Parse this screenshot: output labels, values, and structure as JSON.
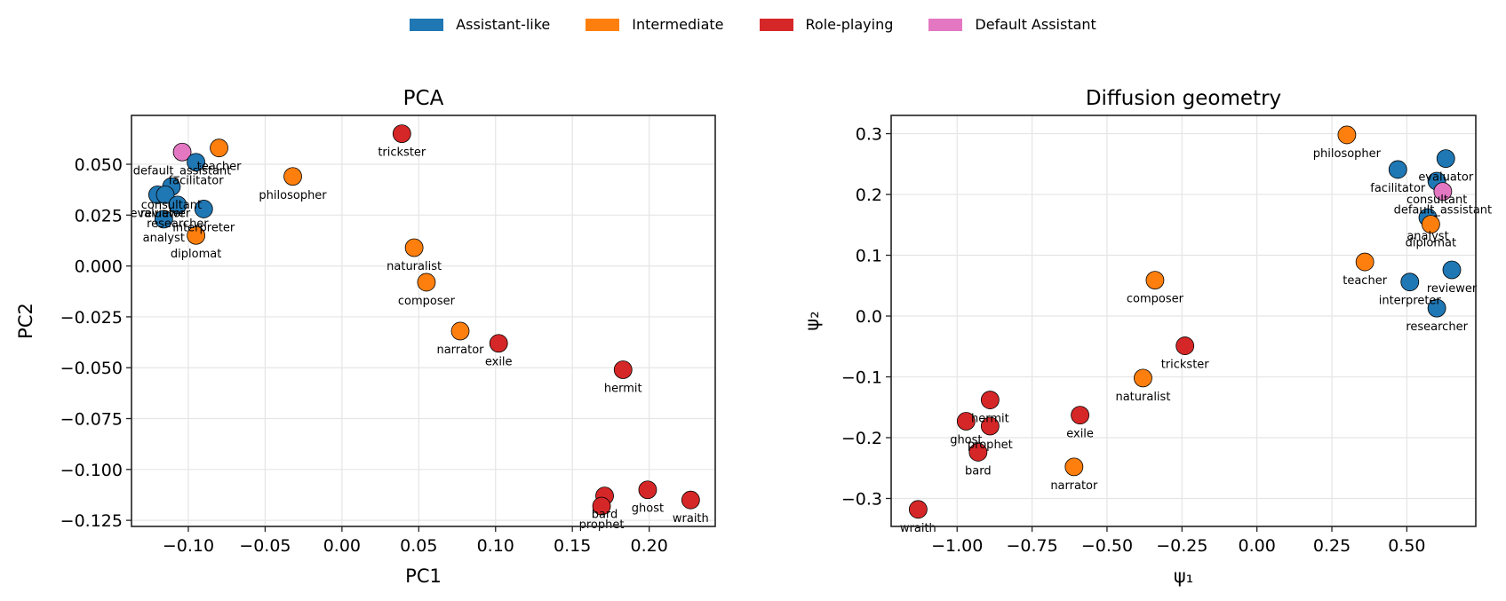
{
  "legend": {
    "placement": "top-center",
    "entries": [
      {
        "label": "Assistant-like",
        "color": "#1f77b4"
      },
      {
        "label": "Intermediate",
        "color": "#ff7f0e"
      },
      {
        "label": "Role-playing",
        "color": "#d62728"
      },
      {
        "label": "Default Assistant",
        "color": "#e377c2"
      }
    ]
  },
  "chart_data": [
    {
      "type": "scatter",
      "title": "PCA",
      "xlabel": "PC1",
      "ylabel": "PC2",
      "xlim": [
        -0.137,
        0.243
      ],
      "ylim": [
        -0.128,
        0.074
      ],
      "xticks": [
        -0.1,
        -0.05,
        0.0,
        0.05,
        0.1,
        0.15,
        0.2
      ],
      "xtick_labels": [
        "−0.10",
        "−0.05",
        "0.00",
        "0.05",
        "0.10",
        "0.15",
        "0.20"
      ],
      "yticks": [
        0.05,
        0.025,
        0.0,
        -0.025,
        -0.05,
        -0.075,
        -0.1,
        -0.125
      ],
      "ytick_labels": [
        "0.050",
        "0.025",
        "0.000",
        "−0.025",
        "−0.050",
        "−0.075",
        "−0.100",
        "−0.125"
      ],
      "grid": true,
      "points": [
        {
          "label": "trickster",
          "group": "Role-playing",
          "x": 0.039,
          "y": 0.065
        },
        {
          "label": "teacher",
          "group": "Intermediate",
          "x": -0.08,
          "y": 0.058
        },
        {
          "label": "default_assistant",
          "group": "Default Assistant",
          "x": -0.104,
          "y": 0.056
        },
        {
          "label": "facilitator",
          "group": "Assistant-like",
          "x": -0.095,
          "y": 0.051
        },
        {
          "label": "philosopher",
          "group": "Intermediate",
          "x": -0.032,
          "y": 0.044
        },
        {
          "label": "consultant",
          "group": "Assistant-like",
          "x": -0.111,
          "y": 0.039
        },
        {
          "label": "evaluator",
          "group": "Assistant-like",
          "x": -0.12,
          "y": 0.035
        },
        {
          "label": "reviewer",
          "group": "Assistant-like",
          "x": -0.115,
          "y": 0.035
        },
        {
          "label": "researcher",
          "group": "Assistant-like",
          "x": -0.107,
          "y": 0.03
        },
        {
          "label": "interpreter",
          "group": "Assistant-like",
          "x": -0.09,
          "y": 0.028
        },
        {
          "label": "analyst",
          "group": "Assistant-like",
          "x": -0.116,
          "y": 0.023
        },
        {
          "label": "diplomat",
          "group": "Intermediate",
          "x": -0.095,
          "y": 0.015
        },
        {
          "label": "naturalist",
          "group": "Intermediate",
          "x": 0.047,
          "y": 0.009
        },
        {
          "label": "composer",
          "group": "Intermediate",
          "x": 0.055,
          "y": -0.008
        },
        {
          "label": "narrator",
          "group": "Intermediate",
          "x": 0.077,
          "y": -0.032
        },
        {
          "label": "exile",
          "group": "Role-playing",
          "x": 0.102,
          "y": -0.038
        },
        {
          "label": "hermit",
          "group": "Role-playing",
          "x": 0.183,
          "y": -0.051
        },
        {
          "label": "ghost",
          "group": "Role-playing",
          "x": 0.199,
          "y": -0.11
        },
        {
          "label": "bard",
          "group": "Role-playing",
          "x": 0.171,
          "y": -0.113
        },
        {
          "label": "prophet",
          "group": "Role-playing",
          "x": 0.169,
          "y": -0.118
        },
        {
          "label": "wraith",
          "group": "Role-playing",
          "x": 0.227,
          "y": -0.115
        }
      ]
    },
    {
      "type": "scatter",
      "title": "Diffusion geometry",
      "xlabel": "ψ₁",
      "ylabel": "ψ₂",
      "xlim": [
        -1.22,
        0.73
      ],
      "ylim": [
        -0.346,
        0.33
      ],
      "xticks": [
        -1.0,
        -0.75,
        -0.5,
        -0.25,
        0.0,
        0.25,
        0.5
      ],
      "xtick_labels": [
        "−1.00",
        "−0.75",
        "−0.50",
        "−0.25",
        "0.00",
        "0.25",
        "0.50"
      ],
      "yticks": [
        0.3,
        0.2,
        0.1,
        0.0,
        -0.1,
        -0.2,
        -0.3
      ],
      "ytick_labels": [
        "0.3",
        "0.2",
        "0.1",
        "0.0",
        "−0.1",
        "−0.2",
        "−0.3"
      ],
      "grid": true,
      "points": [
        {
          "label": "philosopher",
          "group": "Intermediate",
          "x": 0.3,
          "y": 0.298
        },
        {
          "label": "evaluator",
          "group": "Assistant-like",
          "x": 0.63,
          "y": 0.259
        },
        {
          "label": "facilitator",
          "group": "Assistant-like",
          "x": 0.47,
          "y": 0.241
        },
        {
          "label": "consultant",
          "group": "Assistant-like",
          "x": 0.6,
          "y": 0.222
        },
        {
          "label": "default_assistant",
          "group": "Default Assistant",
          "x": 0.62,
          "y": 0.205
        },
        {
          "label": "analyst",
          "group": "Assistant-like",
          "x": 0.57,
          "y": 0.162
        },
        {
          "label": "diplomat",
          "group": "Intermediate",
          "x": 0.58,
          "y": 0.151
        },
        {
          "label": "teacher",
          "group": "Intermediate",
          "x": 0.36,
          "y": 0.089
        },
        {
          "label": "reviewer",
          "group": "Assistant-like",
          "x": 0.65,
          "y": 0.076
        },
        {
          "label": "interpreter",
          "group": "Assistant-like",
          "x": 0.51,
          "y": 0.056
        },
        {
          "label": "researcher",
          "group": "Assistant-like",
          "x": 0.6,
          "y": 0.013
        },
        {
          "label": "composer",
          "group": "Intermediate",
          "x": -0.34,
          "y": 0.059
        },
        {
          "label": "trickster",
          "group": "Role-playing",
          "x": -0.24,
          "y": -0.049
        },
        {
          "label": "naturalist",
          "group": "Intermediate",
          "x": -0.38,
          "y": -0.102
        },
        {
          "label": "hermit",
          "group": "Role-playing",
          "x": -0.89,
          "y": -0.138
        },
        {
          "label": "exile",
          "group": "Role-playing",
          "x": -0.59,
          "y": -0.163
        },
        {
          "label": "ghost",
          "group": "Role-playing",
          "x": -0.97,
          "y": -0.173
        },
        {
          "label": "prophet",
          "group": "Role-playing",
          "x": -0.89,
          "y": -0.181
        },
        {
          "label": "bard",
          "group": "Role-playing",
          "x": -0.93,
          "y": -0.224
        },
        {
          "label": "narrator",
          "group": "Intermediate",
          "x": -0.61,
          "y": -0.248
        },
        {
          "label": "wraith",
          "group": "Role-playing",
          "x": -1.13,
          "y": -0.318
        }
      ]
    }
  ]
}
